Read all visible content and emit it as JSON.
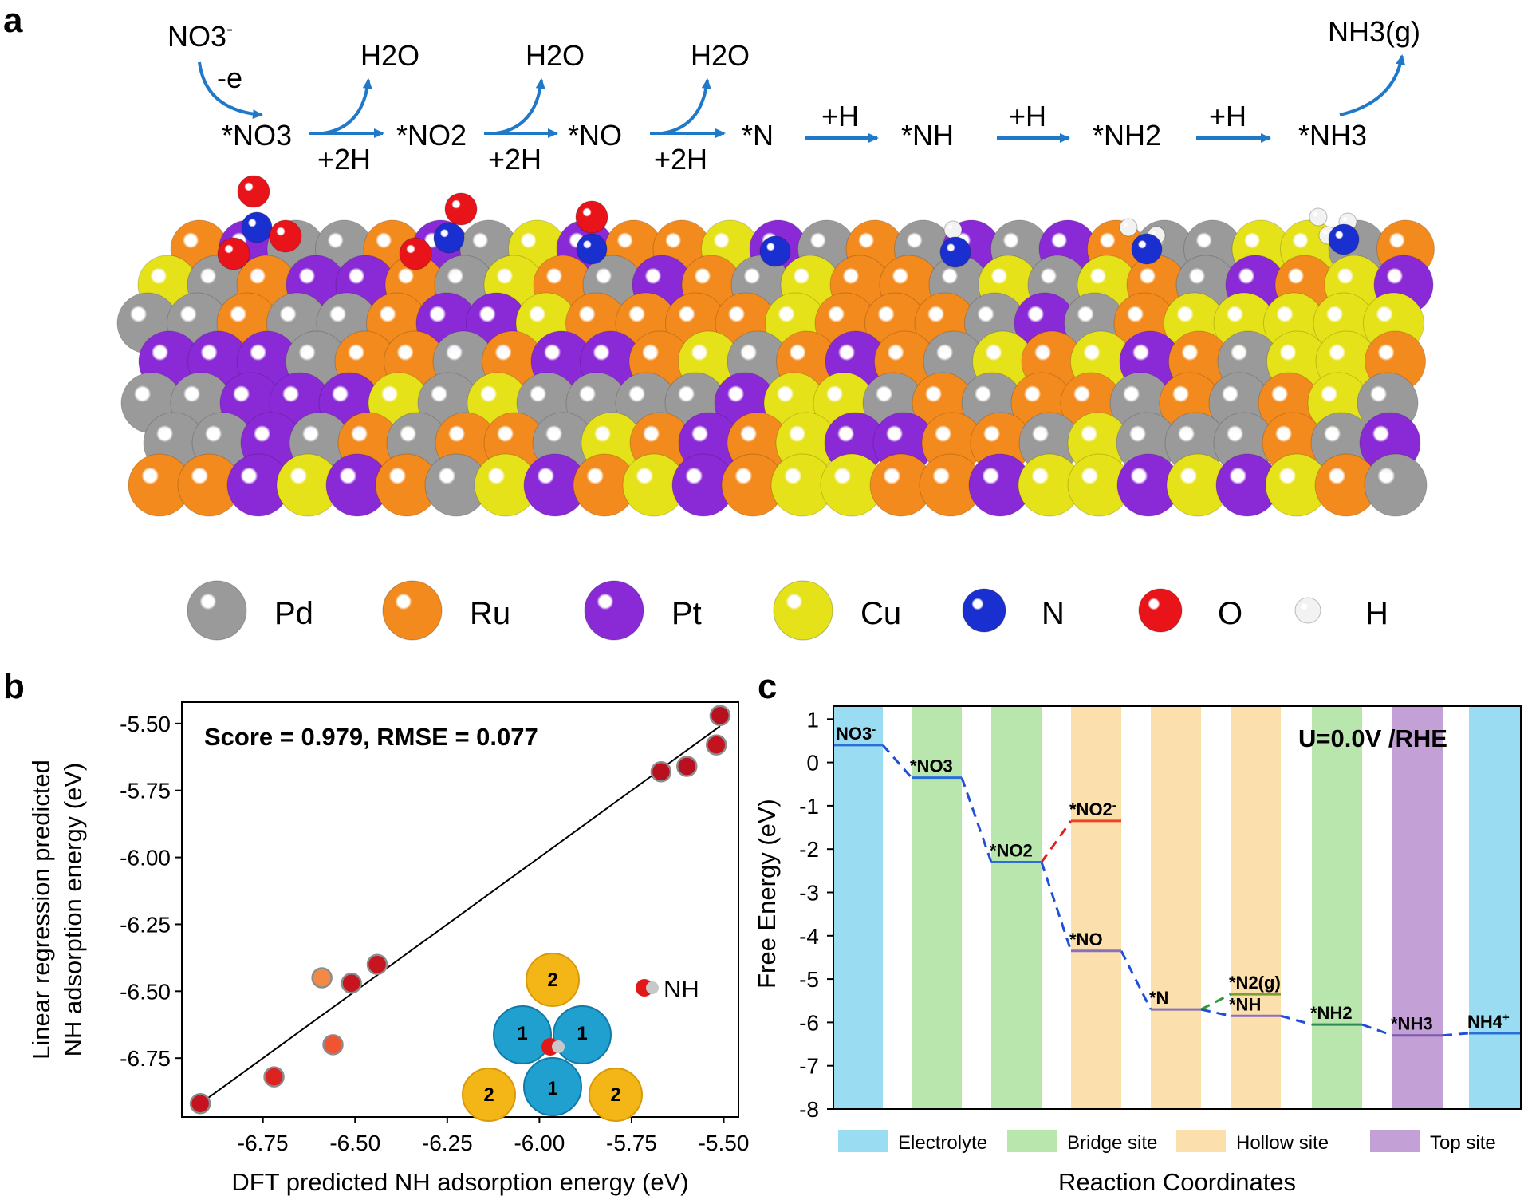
{
  "panel_labels": [
    "a",
    "b",
    "c"
  ],
  "pathway": {
    "nitrate_ion": "NO3",
    "nitrate_charge": "-",
    "oxidation_step": "-e",
    "water": "H2O",
    "proton_pair": "+2H",
    "proton": "+H",
    "ammonia_gas": "NH3(g)",
    "species": [
      "*NO3",
      "*NO2",
      "*NO",
      "*N",
      "*NH",
      "*NH2",
      "*NH3"
    ]
  },
  "element_legend": [
    {
      "symbol": "Pd",
      "color": "#9a9a9a"
    },
    {
      "symbol": "Ru",
      "color": "#f28a1e"
    },
    {
      "symbol": "Pt",
      "color": "#8a2ad6"
    },
    {
      "symbol": "Cu",
      "color": "#e6e21a"
    },
    {
      "symbol": "N",
      "color": "#1a2fd0"
    },
    {
      "symbol": "O",
      "color": "#e8141a"
    },
    {
      "symbol": "H",
      "color": "#f2f2f2"
    }
  ],
  "chart_data": [
    {
      "type": "scatter",
      "annotation": "Score = 0.979, RMSE = 0.077",
      "xlabel": "DFT predicted NH adsorption energy (eV)",
      "ylabel_lines": [
        "Linear regression predicted",
        "NH adsorption energy (eV)"
      ],
      "xlim": [
        -6.97,
        -5.46
      ],
      "ylim": [
        -6.97,
        -5.42
      ],
      "xticks": [
        "-6.75",
        "-6.50",
        "-6.25",
        "-6.00",
        "-5.75",
        "-5.50"
      ],
      "yticks": [
        "-5.50",
        "-5.75",
        "-6.00",
        "-6.25",
        "-6.50",
        "-6.75"
      ],
      "points": [
        {
          "x": -6.92,
          "y": -6.92,
          "color": "#c4121f"
        },
        {
          "x": -6.72,
          "y": -6.82,
          "color": "#dd2222"
        },
        {
          "x": -6.59,
          "y": -6.45,
          "color": "#f28a46"
        },
        {
          "x": -6.56,
          "y": -6.7,
          "color": "#ef5530"
        },
        {
          "x": -6.51,
          "y": -6.47,
          "color": "#c8141e"
        },
        {
          "x": -6.44,
          "y": -6.4,
          "color": "#c8141e"
        },
        {
          "x": -5.67,
          "y": -5.68,
          "color": "#b8101e"
        },
        {
          "x": -5.6,
          "y": -5.66,
          "color": "#b8101e"
        },
        {
          "x": -5.52,
          "y": -5.58,
          "color": "#c4121f"
        },
        {
          "x": -5.51,
          "y": -5.47,
          "color": "#b8101e"
        }
      ],
      "fit_line": {
        "x": [
          -6.92,
          -5.51
        ],
        "y": [
          -6.92,
          -5.51
        ]
      },
      "inset": {
        "outer_site": "2",
        "inner_site": "1",
        "adsorbate": "NH"
      }
    },
    {
      "type": "energy_diagram",
      "annotation": "U=0.0V /RHE",
      "xlabel": "Reaction Coordinates",
      "ylabel": "Free Energy (eV)",
      "ylim": [
        -8,
        1.3
      ],
      "yticks": [
        1,
        0,
        -1,
        -2,
        -3,
        -4,
        -5,
        -6,
        -7,
        -8
      ],
      "site_legend": [
        {
          "name": "Electrolyte",
          "color": "#9adcf2"
        },
        {
          "name": "Bridge site",
          "color": "#b9e6ad"
        },
        {
          "name": "Hollow site",
          "color": "#fbe0ae"
        },
        {
          "name": "Top site",
          "color": "#c3a0d6"
        }
      ],
      "levels": [
        {
          "label": "NO3",
          "sup": "-",
          "energy": 0.4,
          "site": "Electrolyte",
          "color": "#2a6fd6"
        },
        {
          "label": "*NO3",
          "energy": -0.35,
          "site": "Bridge site",
          "color": "#2a6fd6"
        },
        {
          "label": "*NO2",
          "energy": -2.3,
          "site": "Bridge site",
          "color": "#2a6fd6"
        },
        {
          "label": "*NO2",
          "sup": "-",
          "energy": -1.35,
          "site": "Hollow site",
          "color": "#ee4422"
        },
        {
          "label": "*NO",
          "energy": -4.35,
          "site": "Hollow site",
          "color": "#8a6fc0"
        },
        {
          "label": "*N",
          "energy": -5.7,
          "site": "Hollow site",
          "color": "#8a6fc0"
        },
        {
          "label": "*N2(g)",
          "energy": -5.35,
          "site": "Hollow site",
          "color": "#7aa032"
        },
        {
          "label": "*NH",
          "energy": -5.85,
          "site": "Hollow site",
          "color": "#8a6fc0"
        },
        {
          "label": "*NH2",
          "energy": -6.05,
          "site": "Bridge site",
          "color": "#2e8b57"
        },
        {
          "label": "*NH3",
          "energy": -6.3,
          "site": "Top site",
          "color": "#7a5ab0"
        },
        {
          "label": "NH4",
          "sup": "+",
          "energy": -6.25,
          "site": "Electrolyte",
          "color": "#2a6fd6"
        }
      ]
    }
  ]
}
